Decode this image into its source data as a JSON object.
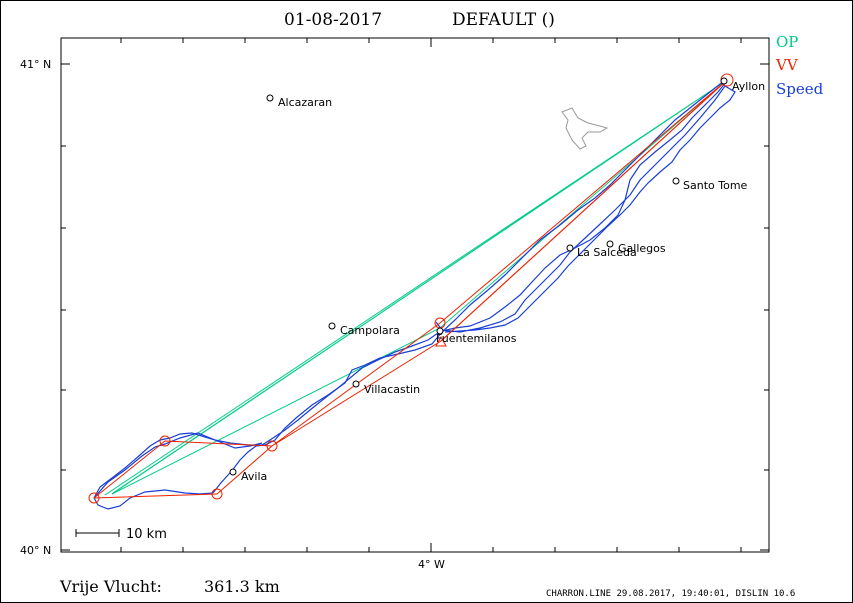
{
  "header": {
    "date": "01-08-2017",
    "task": "DEFAULT ()"
  },
  "legend": [
    {
      "label": "OP",
      "color": "#00cc88"
    },
    {
      "label": "VV",
      "color": "#ee2200"
    },
    {
      "label": "Speed",
      "color": "#1a3fd6"
    }
  ],
  "axes": {
    "lat_top": "41° N",
    "lat_bottom": "40° N",
    "lon_mid": "4° W"
  },
  "towns": [
    {
      "name": "Alcazaran"
    },
    {
      "name": "Santo Tome"
    },
    {
      "name": "Gallegos"
    },
    {
      "name": "La Salceda"
    },
    {
      "name": "Campolara"
    },
    {
      "name": "Fuentemilanos"
    },
    {
      "name": "Villacastin"
    },
    {
      "name": "Avila"
    },
    {
      "name": "Ayllon"
    }
  ],
  "scale_bar": {
    "label": "10 km"
  },
  "summary": {
    "label": "Vrije Vlucht:",
    "distance": "361.3 km"
  },
  "footer": "CHARRON.LINE 29.08.2017, 19:40:01, DISLIN 10.6"
}
